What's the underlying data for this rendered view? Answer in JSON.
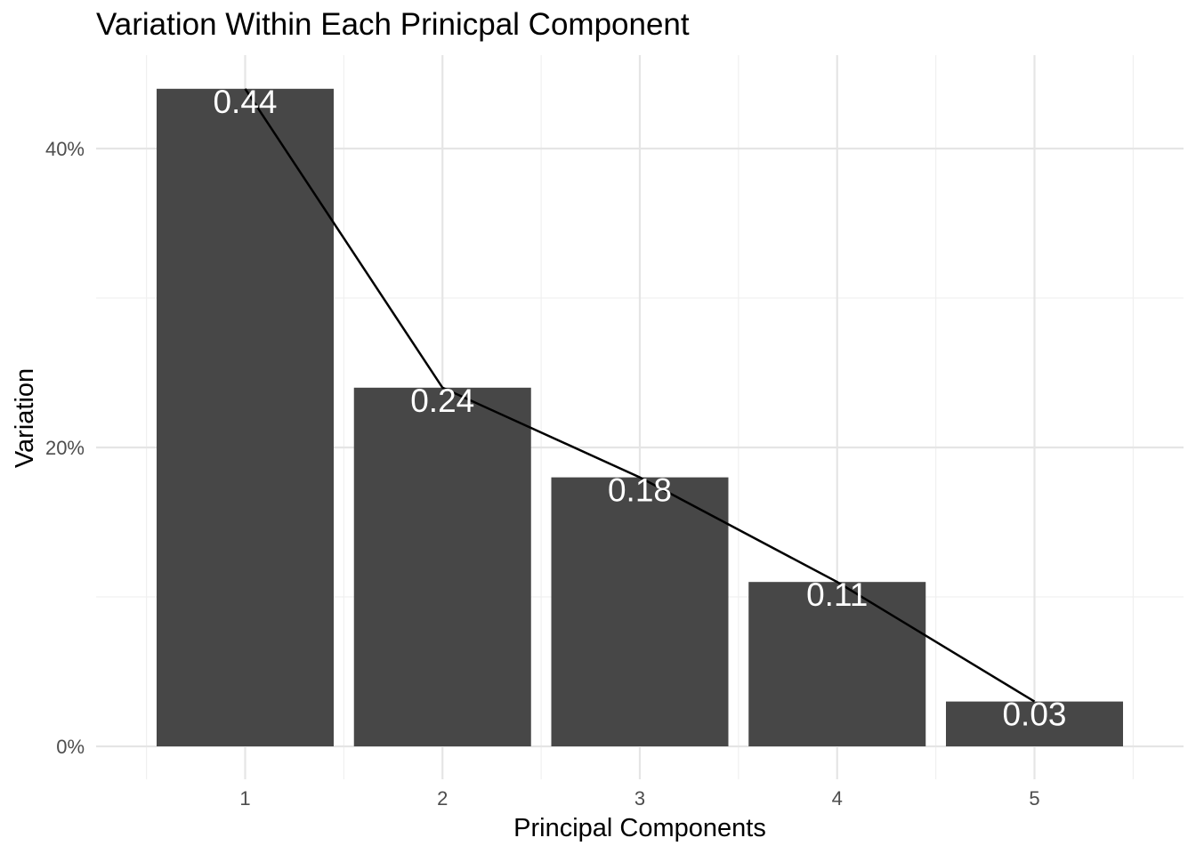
{
  "chart_data": {
    "type": "bar",
    "title": "Variation Within Each Prinicpal Component",
    "xlabel": "Principal Components",
    "ylabel": "Variation",
    "categories": [
      "1",
      "2",
      "3",
      "4",
      "5"
    ],
    "values": [
      0.44,
      0.24,
      0.18,
      0.11,
      0.03
    ],
    "data_labels": [
      "0.44",
      "0.24",
      "0.18",
      "0.11",
      "0.03"
    ],
    "overlay_line": true,
    "y_ticks": [
      0,
      0.2,
      0.4
    ],
    "y_tick_labels": [
      "0%",
      "20%",
      "40%"
    ],
    "ylim": [
      0,
      0.45
    ],
    "grid": true,
    "legend": "none",
    "colors": {
      "bar": "#474747",
      "line": "#000000",
      "grid_major": "#e5e5e5",
      "grid_minor": "#f0f0f0",
      "label": "#ffffff"
    }
  }
}
